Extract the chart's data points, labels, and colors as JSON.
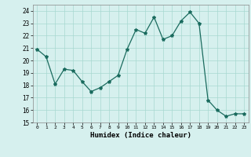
{
  "x": [
    0,
    1,
    2,
    3,
    4,
    5,
    6,
    7,
    8,
    9,
    10,
    11,
    12,
    13,
    14,
    15,
    16,
    17,
    18,
    19,
    20,
    21,
    22,
    23
  ],
  "y": [
    20.9,
    20.3,
    18.1,
    19.3,
    19.2,
    18.3,
    17.5,
    17.8,
    18.3,
    18.8,
    20.9,
    22.5,
    22.2,
    23.5,
    21.7,
    22.0,
    23.2,
    23.9,
    23.0,
    16.8,
    16.0,
    15.5,
    15.7,
    15.7
  ],
  "xlim": [
    -0.5,
    23.5
  ],
  "ylim": [
    15,
    24.5
  ],
  "yticks": [
    15,
    16,
    17,
    18,
    19,
    20,
    21,
    22,
    23,
    24
  ],
  "xticks": [
    0,
    1,
    2,
    3,
    4,
    5,
    6,
    7,
    8,
    9,
    10,
    11,
    12,
    13,
    14,
    15,
    16,
    17,
    18,
    19,
    20,
    21,
    22,
    23
  ],
  "xlabel": "Humidex (Indice chaleur)",
  "line_color": "#1a6b5e",
  "marker": "*",
  "bg_color": "#d6f0ee",
  "grid_color": "#a8d8d0",
  "title": ""
}
